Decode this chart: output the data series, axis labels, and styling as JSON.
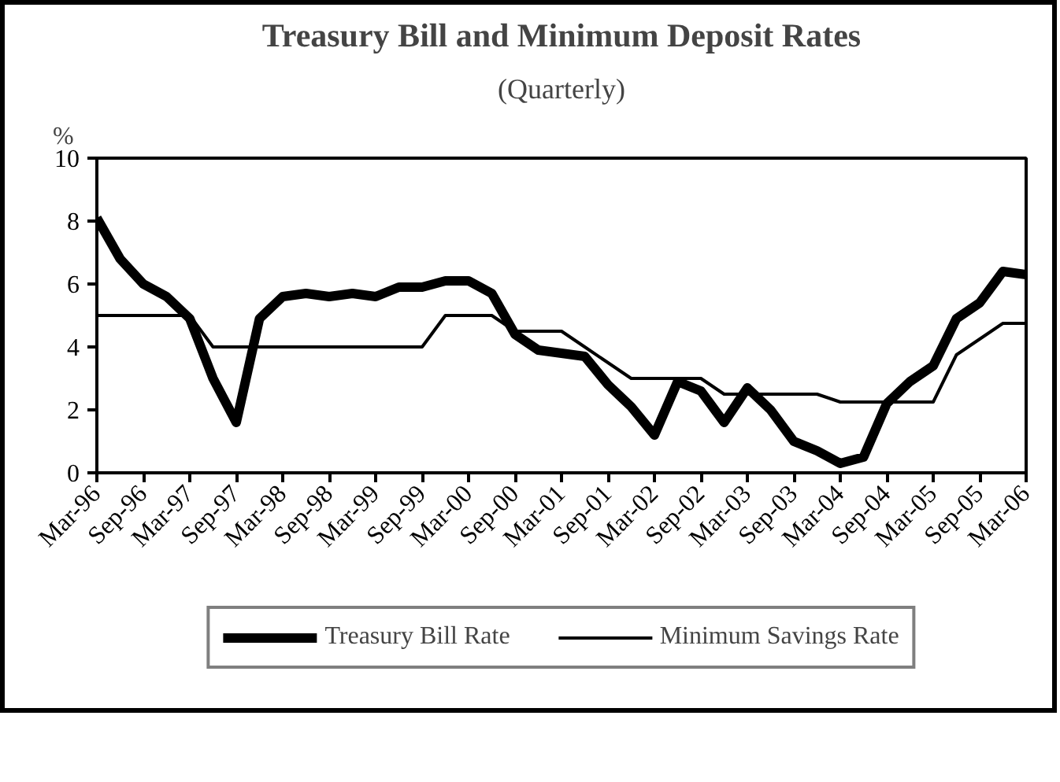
{
  "chart_data": {
    "type": "line",
    "title": "Treasury Bill and Minimum Deposit Rates",
    "subtitle": "(Quarterly)",
    "ylabel": "%",
    "categories": [
      "Mar-96",
      null,
      "Sep-96",
      null,
      "Mar-97",
      null,
      "Sep-97",
      null,
      "Mar-98",
      null,
      "Sep-98",
      null,
      "Mar-99",
      null,
      "Sep-99",
      null,
      "Mar-00",
      null,
      "Sep-00",
      null,
      "Mar-01",
      null,
      "Sep-01",
      null,
      "Mar-02",
      null,
      "Sep-02",
      null,
      "Mar-03",
      null,
      "Sep-03",
      null,
      "Mar-04",
      null,
      "Sep-04",
      null,
      "Mar-05",
      null,
      "Sep-05",
      null,
      "Mar-06"
    ],
    "series": [
      {
        "name": "Treasury Bill Rate",
        "color": "#000000",
        "values": [
          8.1,
          6.8,
          6.0,
          5.6,
          4.9,
          3.0,
          1.6,
          4.9,
          5.6,
          5.7,
          5.6,
          5.7,
          5.6,
          5.9,
          5.9,
          6.1,
          6.1,
          5.7,
          4.4,
          3.9,
          3.8,
          3.7,
          2.8,
          2.1,
          1.2,
          2.9,
          2.6,
          1.6,
          2.7,
          2.0,
          1.0,
          0.7,
          0.3,
          0.5,
          2.2,
          2.9,
          3.4,
          4.9,
          5.4,
          6.4,
          6.3
        ]
      },
      {
        "name": "Minimum Savings Rate",
        "color": "#000000",
        "values": [
          5,
          5,
          5,
          5,
          5,
          4,
          4,
          4,
          4,
          4,
          4,
          4,
          4,
          4,
          4,
          5,
          5,
          5,
          4.5,
          4.5,
          4.5,
          4.0,
          3.5,
          3.0,
          3.0,
          3.0,
          3.0,
          2.5,
          2.5,
          2.5,
          2.5,
          2.5,
          2.25,
          2.25,
          2.25,
          2.25,
          2.25,
          3.75,
          4.25,
          4.75,
          4.75
        ]
      }
    ],
    "ylim": [
      0,
      10
    ],
    "yticks": [
      0,
      2,
      4,
      6,
      8,
      10
    ],
    "grid": false,
    "legend": "bottom",
    "marker": "none",
    "line_style": "solid"
  }
}
